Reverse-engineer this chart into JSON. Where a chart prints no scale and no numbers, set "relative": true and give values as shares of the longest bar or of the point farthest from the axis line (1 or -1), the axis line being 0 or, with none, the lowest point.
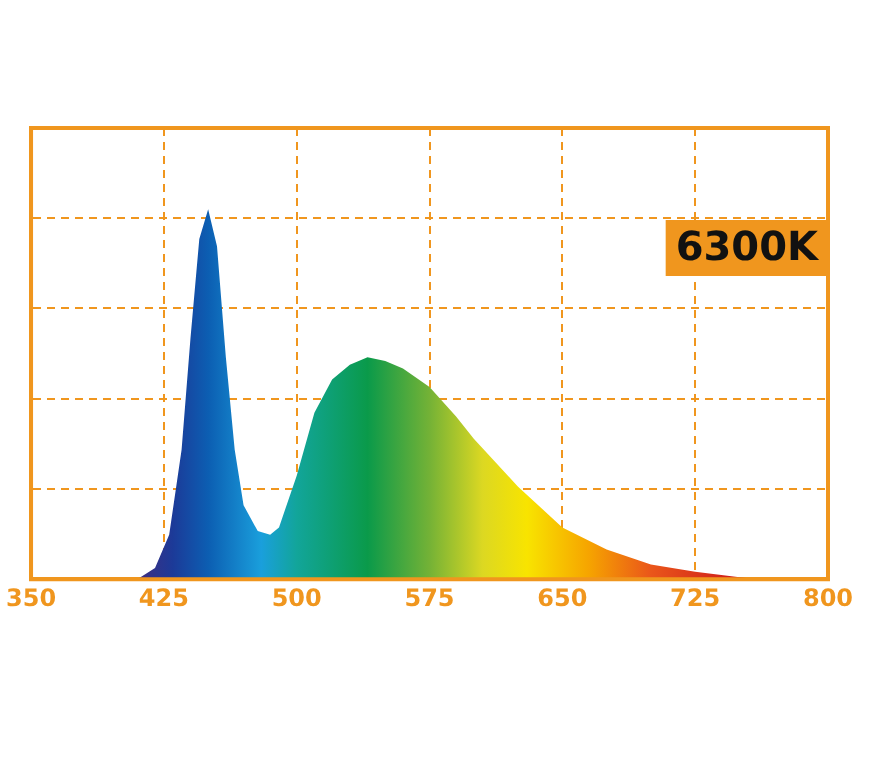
{
  "chart_data": {
    "type": "area",
    "relative": true,
    "x": [
      410,
      420,
      428,
      435,
      440,
      445,
      450,
      455,
      460,
      465,
      470,
      478,
      485,
      490,
      500,
      510,
      520,
      530,
      540,
      550,
      560,
      575,
      590,
      600,
      625,
      650,
      675,
      700,
      725,
      750,
      760
    ],
    "values": [
      0,
      0.03,
      0.12,
      0.35,
      0.65,
      0.92,
      1.0,
      0.9,
      0.6,
      0.35,
      0.2,
      0.13,
      0.12,
      0.14,
      0.28,
      0.45,
      0.54,
      0.58,
      0.6,
      0.59,
      0.57,
      0.52,
      0.44,
      0.38,
      0.25,
      0.14,
      0.08,
      0.04,
      0.02,
      0.005,
      0
    ],
    "xlim": [
      350,
      800
    ],
    "xticks": [
      350,
      425,
      500,
      575,
      650,
      725,
      800
    ],
    "grid": true,
    "annotations": [
      "6300K"
    ]
  }
}
